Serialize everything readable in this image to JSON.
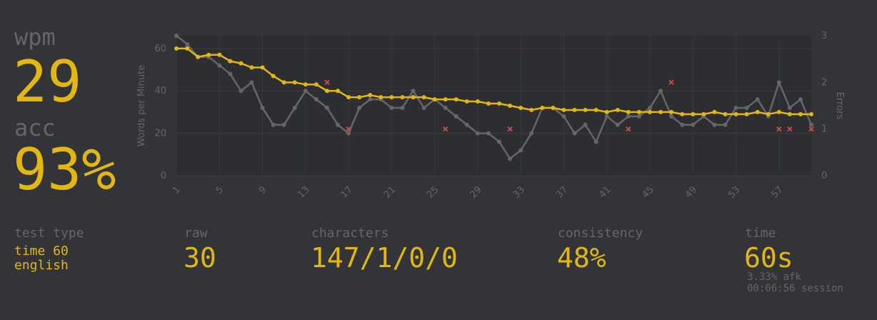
{
  "stats": {
    "wpm_label": "wpm",
    "wpm": "29",
    "acc_label": "acc",
    "acc": "93%",
    "test_type_label": "test type",
    "test_type": [
      "time 60",
      "english"
    ],
    "raw_label": "raw",
    "raw": "30",
    "characters_label": "characters",
    "characters": "147/1/0/0",
    "consistency_label": "consistency",
    "consistency": "48%",
    "time_label": "time",
    "time": "60s",
    "afk": "3.33% afk",
    "session": "00:06:56 session"
  },
  "chart_data": {
    "type": "line",
    "y_label": "Words per Minute",
    "y2_label": "Errors",
    "x": [
      1,
      2,
      3,
      4,
      5,
      6,
      7,
      8,
      9,
      10,
      11,
      12,
      13,
      14,
      15,
      16,
      17,
      18,
      19,
      20,
      21,
      22,
      23,
      24,
      25,
      26,
      27,
      28,
      29,
      30,
      31,
      32,
      33,
      34,
      35,
      36,
      37,
      38,
      39,
      40,
      41,
      42,
      43,
      44,
      45,
      46,
      47,
      48,
      49,
      50,
      51,
      52,
      53,
      54,
      55,
      56,
      57,
      58,
      59,
      60
    ],
    "xlim": [
      1,
      60
    ],
    "xticks": [
      1,
      5,
      9,
      13,
      17,
      21,
      25,
      29,
      33,
      37,
      41,
      45,
      49,
      53,
      57
    ],
    "ylim": [
      0,
      66
    ],
    "yticks": [
      0,
      20,
      40,
      60
    ],
    "y2lim": [
      0,
      3
    ],
    "y2ticks": [
      0,
      1,
      2,
      3
    ],
    "grid": true,
    "series": [
      {
        "color": "#646669",
        "values": [
          66,
          62,
          56,
          56,
          52,
          48,
          40,
          44,
          32,
          24,
          24,
          32,
          40,
          36,
          32,
          24,
          20,
          32,
          36,
          36,
          32,
          32,
          40,
          32,
          36,
          32,
          28,
          24,
          20,
          20,
          16,
          8,
          12,
          20,
          32,
          32,
          28,
          20,
          24,
          16,
          28,
          24,
          28,
          28,
          32,
          40,
          28,
          24,
          24,
          28,
          24,
          24,
          32,
          32,
          36,
          28,
          44,
          32,
          36,
          24
        ]
      },
      {
        "color": "#e2b714",
        "values": [
          60,
          60,
          56,
          57,
          57,
          54,
          53,
          51,
          51,
          47,
          44,
          44,
          43,
          43,
          40,
          40,
          37,
          37,
          38,
          37,
          37,
          37,
          37,
          37,
          36,
          36,
          36,
          35,
          35,
          34,
          34,
          33,
          32,
          31,
          32,
          32,
          31,
          31,
          31,
          31,
          30,
          31,
          30,
          30,
          30,
          30,
          30,
          29,
          29,
          29,
          30,
          29,
          29,
          29,
          30,
          29,
          30,
          29,
          29,
          29
        ]
      },
      {
        "type": "scatter",
        "axis": "y2",
        "color": "#ca4754",
        "x": [
          15,
          17,
          26,
          32,
          43,
          47,
          57,
          58,
          60
        ],
        "values": [
          2,
          1,
          1,
          1,
          1,
          2,
          1,
          1,
          1
        ]
      }
    ]
  }
}
